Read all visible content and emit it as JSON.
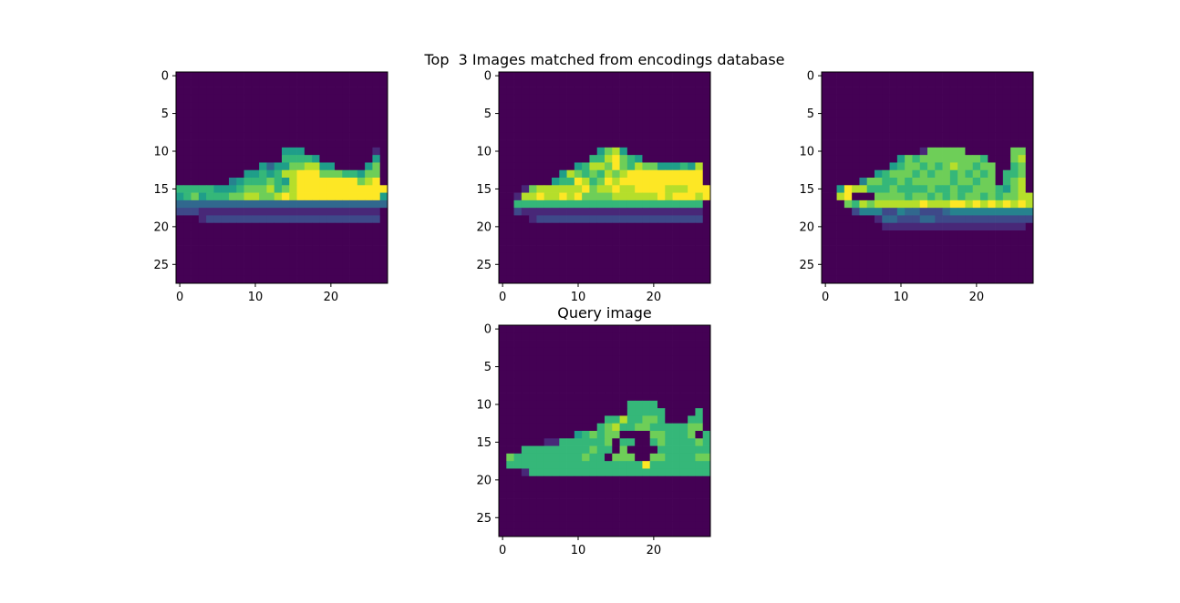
{
  "figure": {
    "suptitle": "Top  3 Images matched from encodings database"
  },
  "colors": {
    "viridis": [
      "#440154",
      "#482878",
      "#3e4989",
      "#31688e",
      "#26828e",
      "#1f9e89",
      "#35b779",
      "#6ece58",
      "#b5de2b",
      "#fde725"
    ],
    "axes": "#000000",
    "background": "#ffffff"
  },
  "chart_data": [
    {
      "type": "heatmap",
      "title": "",
      "colormap": "viridis",
      "shape": [
        28,
        28
      ],
      "xlim": [
        -0.5,
        27.5
      ],
      "ylim": [
        27.5,
        -0.5
      ],
      "xticks": [
        0,
        10,
        20
      ],
      "yticks": [
        0,
        5,
        10,
        15,
        20,
        25
      ],
      "rows": [
        "0000000000000000000000000000",
        "0000000000000000000000000000",
        "0000000000000000000000000000",
        "0000000000000000000000000000",
        "0000000000000000000000000000",
        "0000000000000000000000000000",
        "0000000000000000000000000000",
        "0000000000000000000000000000",
        "0000000000000000000000000000",
        "0000000000000000000000000000",
        "0000000000000055500000000010",
        "0000000000000066665000000050",
        "0000000000053557788550000570",
        "0000000005565688999777665770",
        "0000000456667658999999997890",
        "6666655567778678999999999999",
        "5675666778877898999999999995",
        "3333333333333333333333333333",
        "2221111111111111111111111110",
        "0001222222222222222222222220",
        "0000000000000000000000000000",
        "0000000000000000000000000000",
        "0000000000000000000000000000",
        "0000000000000000000000000000",
        "0000000000000000000000000000",
        "0000000000000000000000000000",
        "0000000000000000000000000000",
        "0000000000000000000000000000"
      ]
    },
    {
      "type": "heatmap",
      "title": "",
      "colormap": "viridis",
      "shape": [
        28,
        28
      ],
      "xlim": [
        -0.5,
        27.5
      ],
      "ylim": [
        27.5,
        -0.5
      ],
      "xticks": [
        0,
        10,
        20
      ],
      "yticks": [
        0,
        5,
        10,
        15,
        20,
        25
      ],
      "rows": [
        "0000000000000000000000000000",
        "0000000000000000000000000000",
        "0000000000000000000000000000",
        "0000000000000000000000000000",
        "0000000000000000000000000000",
        "0000000000000000000000000000",
        "0000000000000000000000000000",
        "0000000000000000000000000000",
        "0000000000000000000000000000",
        "0000000000000000000000000000",
        "0000000000000578500000000000",
        "0000000000006689765000000000",
        "0000000000568879768775556580",
        "0000000058767687899999999990",
        "0000000566986798999999999990",
        "0001788888897889889999888999",
        "0018898898977778888889899989",
        "0066666666666666666666666660",
        "0021111111111111111111111110",
        "0000122222222222222222222220",
        "0000000000000000000000000000",
        "0000000000000000000000000000",
        "0000000000000000000000000000",
        "0000000000000000000000000000",
        "0000000000000000000000000000",
        "0000000000000000000000000000",
        "0000000000000000000000000000",
        "0000000000000000000000000000"
      ]
    },
    {
      "type": "heatmap",
      "title": "",
      "colormap": "viridis",
      "shape": [
        28,
        28
      ],
      "xlim": [
        -0.5,
        27.5
      ],
      "ylim": [
        27.5,
        -0.5
      ],
      "xticks": [
        0,
        10,
        20
      ],
      "yticks": [
        0,
        5,
        10,
        15,
        20,
        25
      ],
      "rows": [
        "0000000000000000000000000000",
        "0000000000000000000000000000",
        "0000000000000000000000000000",
        "0000000000000000000000000000",
        "0000000000000000000000000000",
        "0000000000000000000000000000",
        "0000000000000000000000000000",
        "0000000000000000000000000000",
        "0000000000000000000000000000",
        "0000000000000000000000000000",
        "0000000000000177777000000770",
        "0000000000576777777776000780",
        "0000000005677676787767700670",
        "0000000567776767767676706670",
        "0000047766767777767767706780",
        "0059886667666676676677765780",
        "0089000777767767676776767788",
        "0007687888888988899898989898",
        "0000244422433222344444444444",
        "0000000133222332222222222222",
        "0000000011111111111111111110",
        "0000000000000000000000000000",
        "0000000000000000000000000000",
        "0000000000000000000000000000",
        "0000000000000000000000000000",
        "0000000000000000000000000000",
        "0000000000000000000000000000",
        "0000000000000000000000000000"
      ]
    },
    {
      "type": "heatmap",
      "title": "Query image",
      "colormap": "viridis",
      "shape": [
        28,
        28
      ],
      "xlim": [
        -0.5,
        27.5
      ],
      "ylim": [
        27.5,
        -0.5
      ],
      "xticks": [
        0,
        10,
        20
      ],
      "yticks": [
        0,
        5,
        10,
        15,
        20,
        25
      ],
      "rows": [
        "0000000000000000000000000000",
        "0000000000000000000000000000",
        "0000000000000000000000000000",
        "0000000000000000000000000000",
        "0000000000000000000000000000",
        "0000000000000000000000000000",
        "0000000000000000000000000000",
        "0000000000000000000000000000",
        "0000000000000000000000000000",
        "0000000000000000000000000000",
        "0000000000000000066660000000",
        "0000000000000000066666000060",
        "0000000000000066866776000660",
        "0000000000000678667766666770",
        "0000000000567677000077666706",
        "0000001166666670660067666676",
        "0006666666667660700006666666",
        "0766666666676607770077666677",
        "0666666666666666666966666666",
        "0001666666666666666666666666",
        "0000000000000000000000000000",
        "0000000000000000000000000000",
        "0000000000000000000000000000",
        "0000000000000000000000000000",
        "0000000000000000000000000000",
        "0000000000000000000000000000",
        "0000000000000000000000000000",
        "0000000000000000000000000000"
      ]
    }
  ]
}
